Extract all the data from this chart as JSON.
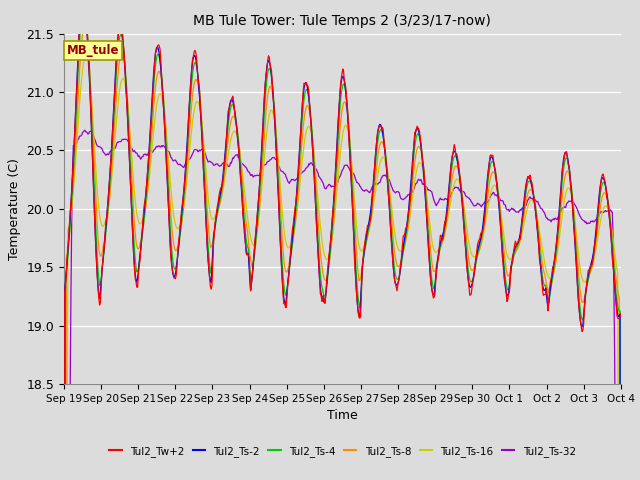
{
  "title": "MB Tule Tower: Tule Temps 2 (3/23/17-now)",
  "xlabel": "Time",
  "ylabel": "Temperature (C)",
  "ylim": [
    18.5,
    21.5
  ],
  "bg_color": "#dcdcdc",
  "plot_bg_color": "#dcdcdc",
  "series": [
    {
      "label": "Tul2_Tw+2",
      "color": "#ff0000"
    },
    {
      "label": "Tul2_Ts-2",
      "color": "#0000ff"
    },
    {
      "label": "Tul2_Ts-4",
      "color": "#00cc00"
    },
    {
      "label": "Tul2_Ts-8",
      "color": "#ff8c00"
    },
    {
      "label": "Tul2_Ts-16",
      "color": "#cccc00"
    },
    {
      "label": "Tul2_Ts-32",
      "color": "#9900cc"
    }
  ],
  "annotation_label": "MB_tule",
  "annotation_color": "#990000",
  "annotation_bg": "#ffff99",
  "annotation_border": "#999900",
  "xtick_labels": [
    "Sep 19",
    "Sep 20",
    "Sep 21",
    "Sep 22",
    "Sep 23",
    "Sep 24",
    "Sep 25",
    "Sep 26",
    "Sep 27",
    "Sep 28",
    "Sep 29",
    "Sep 30",
    "Oct 1",
    "Oct 2",
    "Oct 3",
    "Oct 4"
  ],
  "ytick_labels": [
    "18.5",
    "19.0",
    "19.5",
    "20.0",
    "20.5",
    "21.0",
    "21.5"
  ],
  "ytick_values": [
    18.5,
    19.0,
    19.5,
    20.0,
    20.5,
    21.0,
    21.5
  ],
  "n_days": 15
}
